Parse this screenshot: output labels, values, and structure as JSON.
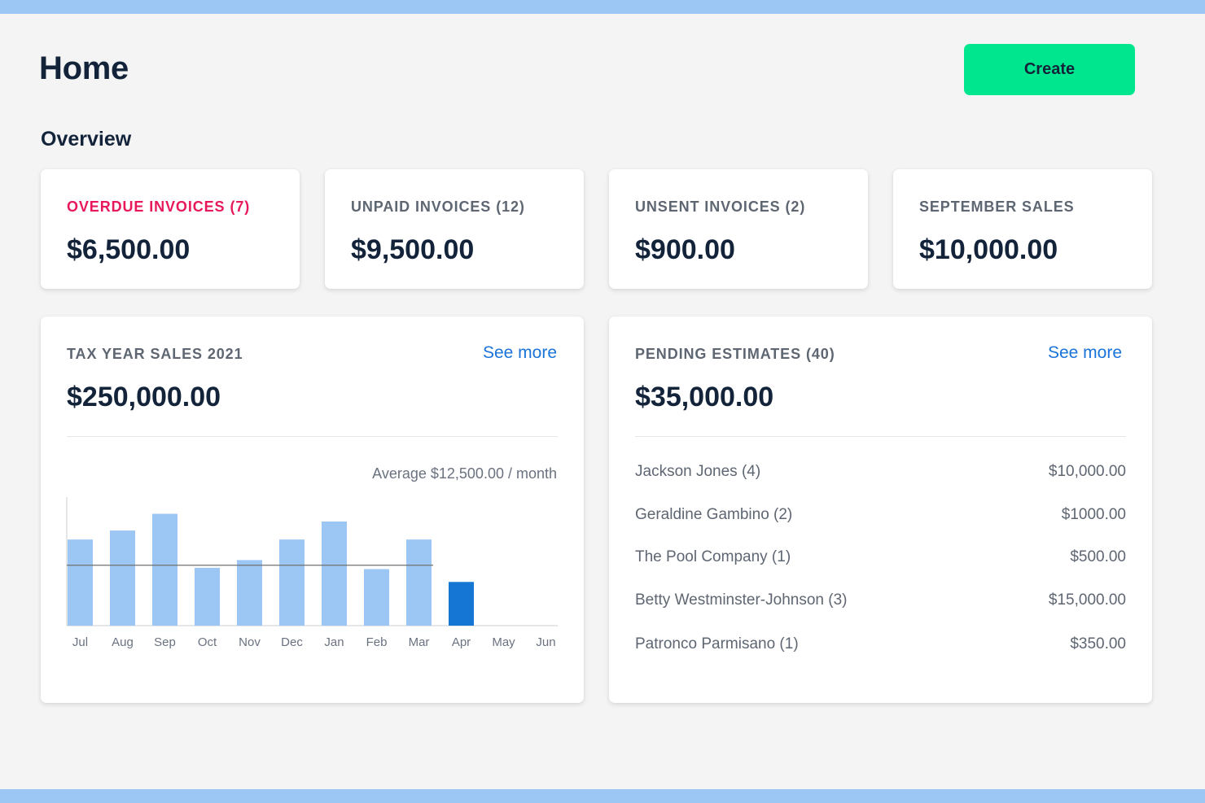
{
  "header": {
    "title": "Home",
    "create_label": "Create"
  },
  "overview": {
    "title": "Overview",
    "cards": [
      {
        "label": "OVERDUE INVOICES",
        "count": "(7)",
        "value": "$6,500.00",
        "accent": "#e8195a"
      },
      {
        "label": "UNPAID INVOICES",
        "count": "(12)",
        "value": "$9,500.00"
      },
      {
        "label": "UNSENT INVOICES",
        "count": "(2)",
        "value": "$900.00"
      },
      {
        "label": "SEPTEMBER SALES",
        "count": "",
        "value": "$10,000.00"
      }
    ]
  },
  "tax_year": {
    "label": "TAX YEAR SALES 2021",
    "value": "$250,000.00",
    "see_more": "See more",
    "average_note": "Average $12,500.00 / month"
  },
  "chart_data": {
    "type": "bar",
    "categories": [
      "Jul",
      "Aug",
      "Sep",
      "Oct",
      "Nov",
      "Dec",
      "Jan",
      "Feb",
      "Mar",
      "Apr",
      "May",
      "Jun"
    ],
    "values": [
      0.67,
      0.74,
      0.87,
      0.45,
      0.51,
      0.67,
      0.81,
      0.44,
      0.67,
      0.34,
      0,
      0
    ],
    "average": 0.47,
    "highlight_category": "Apr",
    "bar_color": "#9cc6f4",
    "highlight_color": "#1576d4",
    "average_line_color": "#707070",
    "ylim": [
      0,
      1
    ],
    "grid": false,
    "title": "",
    "xlabel": "",
    "ylabel": ""
  },
  "pending": {
    "label": "PENDING ESTIMATES",
    "count": "(40)",
    "value": "$35,000.00",
    "see_more": "See more",
    "rows": [
      {
        "name": "Jackson Jones (4)",
        "amount": "$10,000.00"
      },
      {
        "name": "Geraldine Gambino (2)",
        "amount": "$1000.00"
      },
      {
        "name": "The Pool Company (1)",
        "amount": "$500.00"
      },
      {
        "name": "Betty Westminster-Johnson (3)",
        "amount": "$15,000.00"
      },
      {
        "name": "Patronco Parmisano (1)",
        "amount": "$350.00"
      }
    ]
  },
  "colors": {
    "accent_green": "#00e68f",
    "link_blue": "#1a73d9",
    "band_blue": "#9cc6f4",
    "overdue_red": "#e8195a"
  }
}
